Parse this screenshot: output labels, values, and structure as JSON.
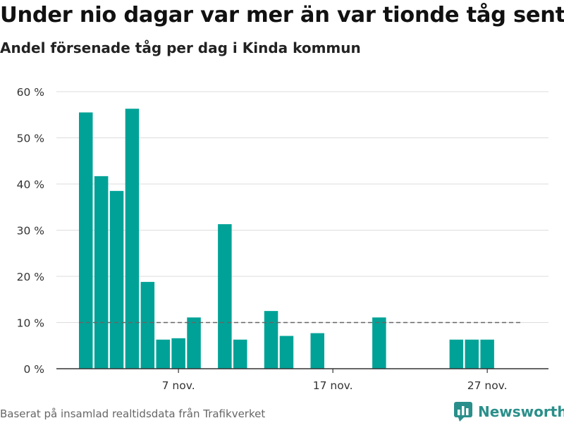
{
  "title": "Under nio dagar var mer än var tionde tåg sent",
  "subtitle": "Andel försenade tåg per dag i Kinda kommun",
  "footer": "Baserat på insamlad realtidsdata från Trafikverket",
  "brand": {
    "name": "Newsworthy",
    "icon": "bar-chart-logo-icon"
  },
  "colors": {
    "bar": "#00a297",
    "grid": "#dddddd",
    "axis": "#333333",
    "reference": "#666666",
    "brand": "#2a8f8a"
  },
  "chart_data": {
    "type": "bar",
    "x": [
      "1 nov.",
      "2 nov.",
      "3 nov.",
      "4 nov.",
      "5 nov.",
      "6 nov.",
      "7 nov.",
      "8 nov.",
      "9 nov.",
      "10 nov.",
      "11 nov.",
      "12 nov.",
      "13 nov.",
      "14 nov.",
      "15 nov.",
      "16 nov.",
      "17 nov.",
      "18 nov.",
      "19 nov.",
      "20 nov.",
      "21 nov.",
      "22 nov.",
      "23 nov.",
      "24 nov.",
      "25 nov.",
      "26 nov.",
      "27 nov.",
      "28 nov.",
      "29 nov.",
      "30 nov."
    ],
    "values": [
      55.5,
      41.7,
      38.5,
      56.3,
      18.8,
      6.3,
      6.6,
      11.1,
      null,
      31.3,
      6.3,
      null,
      12.5,
      7.1,
      null,
      7.7,
      null,
      null,
      null,
      11.1,
      null,
      null,
      null,
      null,
      6.3,
      6.3,
      6.3,
      null,
      null,
      null
    ],
    "ylim": [
      0,
      60
    ],
    "y_ticks": [
      0,
      10,
      20,
      30,
      40,
      50,
      60
    ],
    "y_tick_labels": [
      "0 %",
      "10 %",
      "20 %",
      "30 %",
      "40 %",
      "50 %",
      "60 %"
    ],
    "x_ticks": [
      "7 nov.",
      "17 nov.",
      "27 nov."
    ],
    "x_tick_positions": [
      7,
      17,
      27
    ],
    "reference_line": 10,
    "grid": true,
    "legend": "none"
  }
}
